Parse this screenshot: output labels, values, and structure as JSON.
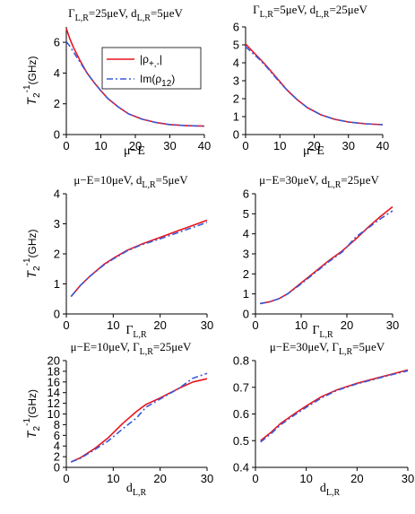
{
  "colors": {
    "red": "#e8141e",
    "blue": "#3a5ad8"
  },
  "chart_data": [
    {
      "type": "line",
      "title": "Γ_{L,R}=25μeV, d_{L,R}=5μeV",
      "title_parts": [
        "ΓL,R=25μeV, dL,R=5μeV"
      ],
      "xlabel": "μ−E",
      "ylabel": "T2-1(GHz)",
      "xlim": [
        0,
        40
      ],
      "ylim": [
        0,
        7
      ],
      "xticks": [
        0,
        10,
        20,
        30,
        40
      ],
      "yticks": [
        0,
        2,
        4,
        6
      ],
      "legend": {
        "placement": "top-right",
        "entries": [
          "|ρ+,-|",
          "Im(ρ12)"
        ]
      },
      "series": [
        {
          "name": "|ρ+,-|",
          "style": "solid",
          "x": [
            0,
            1,
            2,
            4,
            6,
            8,
            10,
            12,
            15,
            18,
            22,
            26,
            30,
            35,
            40
          ],
          "y": [
            6.9,
            6.25,
            5.7,
            4.8,
            4.0,
            3.4,
            2.85,
            2.35,
            1.8,
            1.35,
            1.0,
            0.78,
            0.65,
            0.58,
            0.55
          ]
        },
        {
          "name": "Im(ρ12)",
          "style": "dashdot",
          "x": [
            0,
            1,
            2,
            4,
            6,
            8,
            10,
            12,
            15,
            18,
            22,
            26,
            30,
            35,
            40
          ],
          "y": [
            6.05,
            5.75,
            5.4,
            4.7,
            4.0,
            3.4,
            2.85,
            2.35,
            1.8,
            1.35,
            1.0,
            0.78,
            0.65,
            0.58,
            0.55
          ]
        }
      ]
    },
    {
      "type": "line",
      "title": "Γ_{L,R}=5μeV, d_{L,R}=25μeV",
      "xlabel": "μ−E",
      "ylabel": "",
      "xlim": [
        0,
        40
      ],
      "ylim": [
        0,
        6
      ],
      "xticks": [
        0,
        10,
        20,
        30,
        40
      ],
      "yticks": [
        0,
        1,
        2,
        3,
        4,
        5,
        6
      ],
      "series": [
        {
          "style": "solid",
          "x": [
            0,
            2,
            4,
            6,
            8,
            10,
            12,
            15,
            18,
            22,
            26,
            30,
            35,
            40
          ],
          "y": [
            5.05,
            4.65,
            4.25,
            3.85,
            3.4,
            2.95,
            2.5,
            1.95,
            1.5,
            1.1,
            0.85,
            0.7,
            0.6,
            0.55
          ]
        },
        {
          "style": "dashdot",
          "x": [
            0,
            2,
            4,
            6,
            8,
            10,
            12,
            15,
            18,
            22,
            26,
            30,
            35,
            40
          ],
          "y": [
            4.9,
            4.55,
            4.2,
            3.8,
            3.35,
            2.9,
            2.5,
            1.95,
            1.5,
            1.1,
            0.85,
            0.7,
            0.6,
            0.55
          ]
        }
      ]
    },
    {
      "type": "line",
      "title": "μ−E=10μeV, d_{L,R}=5μeV",
      "xlabel": "ΓL,R",
      "ylabel": "T2-1(GHz)",
      "xlim": [
        0,
        30
      ],
      "ylim": [
        0,
        4
      ],
      "xticks": [
        0,
        10,
        20,
        30
      ],
      "yticks": [
        0,
        1,
        2,
        3,
        4
      ],
      "series": [
        {
          "style": "solid",
          "x": [
            1,
            3,
            5,
            8,
            10,
            13,
            16,
            20,
            24,
            27,
            30
          ],
          "y": [
            0.58,
            0.95,
            1.25,
            1.65,
            1.85,
            2.12,
            2.32,
            2.55,
            2.78,
            2.95,
            3.12
          ]
        },
        {
          "style": "dashdot",
          "x": [
            1,
            3,
            5,
            8,
            10,
            13,
            16,
            20,
            24,
            27,
            30
          ],
          "y": [
            0.58,
            0.95,
            1.25,
            1.63,
            1.83,
            2.1,
            2.3,
            2.5,
            2.72,
            2.88,
            3.05
          ]
        }
      ]
    },
    {
      "type": "line",
      "title": "μ−E=30μeV, d_{L,R}=25μeV",
      "xlabel": "ΓL,R",
      "ylabel": "",
      "xlim": [
        0,
        30
      ],
      "ylim": [
        0,
        6
      ],
      "xticks": [
        0,
        10,
        20,
        30
      ],
      "yticks": [
        0,
        1,
        2,
        3,
        4,
        5,
        6
      ],
      "series": [
        {
          "style": "solid",
          "x": [
            1,
            3,
            5,
            7,
            10,
            13,
            16,
            19,
            22,
            25,
            27,
            30
          ],
          "y": [
            0.52,
            0.6,
            0.75,
            1.0,
            1.55,
            2.1,
            2.65,
            3.15,
            3.75,
            4.4,
            4.8,
            5.35
          ]
        },
        {
          "style": "dashdot",
          "x": [
            1,
            3,
            5,
            7,
            10,
            13,
            16,
            19,
            22,
            25,
            27,
            30
          ],
          "y": [
            0.52,
            0.6,
            0.75,
            1.0,
            1.5,
            2.05,
            2.6,
            3.1,
            3.85,
            4.35,
            4.7,
            5.15
          ]
        }
      ]
    },
    {
      "type": "line",
      "title": "μ−E=10μeV, Γ_{L,R}=25μeV",
      "xlabel": "dL,R",
      "ylabel": "T2-1(GHz)",
      "xlim": [
        0,
        30
      ],
      "ylim": [
        0,
        20
      ],
      "xticks": [
        0,
        10,
        20,
        30
      ],
      "yticks": [
        0,
        2,
        4,
        6,
        8,
        10,
        12,
        14,
        16,
        18,
        20
      ],
      "series": [
        {
          "style": "solid",
          "x": [
            1,
            3,
            6,
            9,
            12,
            15,
            17,
            20,
            24,
            27,
            30
          ],
          "y": [
            1.0,
            1.8,
            3.5,
            5.6,
            8.2,
            10.5,
            11.8,
            13.0,
            14.8,
            16.0,
            16.6
          ]
        },
        {
          "style": "dashdot",
          "x": [
            1,
            3,
            6,
            9,
            12,
            15,
            17,
            20,
            24,
            27,
            30
          ],
          "y": [
            1.0,
            1.7,
            3.3,
            5.0,
            7.2,
            9.3,
            11.3,
            12.8,
            14.8,
            16.7,
            17.6
          ]
        }
      ]
    },
    {
      "type": "line",
      "title": "μ−E=30μeV, Γ_{L,R}=5μeV",
      "xlabel": "dL,R",
      "ylabel": "",
      "xlim": [
        0,
        30
      ],
      "ylim": [
        0.4,
        0.8
      ],
      "xticks": [
        0,
        10,
        20,
        30
      ],
      "yticks": [
        0.4,
        0.5,
        0.6,
        0.7,
        0.8
      ],
      "series": [
        {
          "style": "solid",
          "x": [
            1,
            3,
            5,
            8,
            10,
            13,
            16,
            20,
            24,
            27,
            30
          ],
          "y": [
            0.5,
            0.53,
            0.565,
            0.605,
            0.63,
            0.665,
            0.69,
            0.715,
            0.735,
            0.75,
            0.765
          ]
        },
        {
          "style": "dashdot",
          "x": [
            1,
            3,
            5,
            8,
            10,
            13,
            16,
            20,
            24,
            27,
            30
          ],
          "y": [
            0.495,
            0.525,
            0.56,
            0.6,
            0.625,
            0.66,
            0.688,
            0.713,
            0.733,
            0.748,
            0.762
          ]
        }
      ]
    }
  ],
  "text": {
    "titles": [
      [
        "Γ",
        "L,R",
        "=25μeV, d",
        "L,R",
        "=5μeV"
      ],
      [
        "Γ",
        "L,R",
        "=5μeV, d",
        "L,R",
        "=25μeV"
      ],
      [
        "μ−E=10μeV, d",
        "L,R",
        "=5μeV"
      ],
      [
        "μ−E=30μeV, d",
        "L,R",
        "=25μeV"
      ],
      [
        "μ−E=10μeV, Γ",
        "L,R",
        "=25μeV"
      ],
      [
        "μ−E=30μeV, Γ",
        "L,R",
        "=5μeV"
      ]
    ],
    "xlabels": [
      [
        "μ−E",
        ""
      ],
      [
        "μ−E",
        ""
      ],
      [
        "Γ",
        "L,R"
      ],
      [
        "Γ",
        "L,R"
      ],
      [
        "d",
        "L,R"
      ],
      [
        "d",
        "L,R"
      ]
    ],
    "ylabel_parts": [
      "T",
      "2",
      "-1",
      "(GHz)"
    ],
    "legend": [
      [
        "|ρ",
        "+,-",
        "|"
      ],
      [
        "Im(ρ",
        "12",
        ")"
      ]
    ]
  }
}
